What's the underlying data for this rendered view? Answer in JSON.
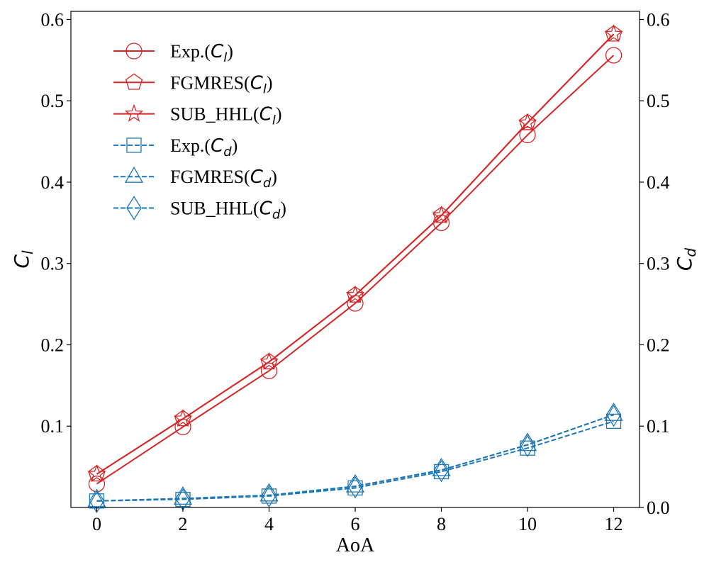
{
  "chart_data": {
    "type": "line",
    "x": [
      0,
      2,
      4,
      6,
      8,
      10,
      12
    ],
    "xlabel": "AoA",
    "xlim": [
      -0.6,
      12.6
    ],
    "xticks": [
      0,
      2,
      4,
      6,
      8,
      10,
      12
    ],
    "ylabel_left": {
      "base": "C",
      "sub": "l"
    },
    "ylabel_right": {
      "base": "C",
      "sub": "d"
    },
    "ylim_left": [
      0.0,
      0.61
    ],
    "ylim_right": [
      0.0,
      0.61
    ],
    "yticks_left": [
      0.1,
      0.2,
      0.3,
      0.4,
      0.5,
      0.6
    ],
    "yticks_right": [
      0.0,
      0.1,
      0.2,
      0.3,
      0.4,
      0.5,
      0.6
    ],
    "legend_position": "upper-left",
    "grid": false,
    "series": [
      {
        "name": "Exp.(C_l)",
        "label_base": "Exp.(",
        "label_sub": "l",
        "axis": "left",
        "color": "#d62728",
        "linestyle": "solid",
        "marker": "circle",
        "values": [
          0.029,
          0.099,
          0.168,
          0.251,
          0.35,
          0.458,
          0.556
        ]
      },
      {
        "name": "FGMRES(C_l)",
        "label_base": "FGMRES(",
        "label_sub": "l",
        "axis": "left",
        "color": "#d62728",
        "linestyle": "solid",
        "marker": "pentagon",
        "values": [
          0.041,
          0.109,
          0.179,
          0.261,
          0.359,
          0.473,
          0.582
        ]
      },
      {
        "name": "SUB_HHL(C_l)",
        "label_base": "SUB_HHL(",
        "label_sub": "l",
        "axis": "left",
        "color": "#d62728",
        "linestyle": "solid",
        "marker": "star",
        "values": [
          0.041,
          0.109,
          0.179,
          0.261,
          0.359,
          0.473,
          0.582
        ]
      },
      {
        "name": "Exp.(C_d)",
        "label_base": "Exp.(",
        "label_sub": "d",
        "axis": "right",
        "color": "#1f77b4",
        "linestyle": "dashed",
        "marker": "square",
        "values": [
          0.008,
          0.01,
          0.014,
          0.024,
          0.044,
          0.073,
          0.106
        ]
      },
      {
        "name": "FGMRES(C_d)",
        "label_base": "FGMRES(",
        "label_sub": "d",
        "axis": "right",
        "color": "#1f77b4",
        "linestyle": "dashed",
        "marker": "triangle",
        "values": [
          0.008,
          0.011,
          0.015,
          0.026,
          0.046,
          0.077,
          0.114
        ]
      },
      {
        "name": "SUB_HHL(C_d)",
        "label_base": "SUB_HHL(",
        "label_sub": "d",
        "axis": "right",
        "color": "#1f77b4",
        "linestyle": "dashed",
        "marker": "diamond",
        "values": [
          0.008,
          0.011,
          0.015,
          0.026,
          0.046,
          0.077,
          0.114
        ]
      }
    ]
  }
}
